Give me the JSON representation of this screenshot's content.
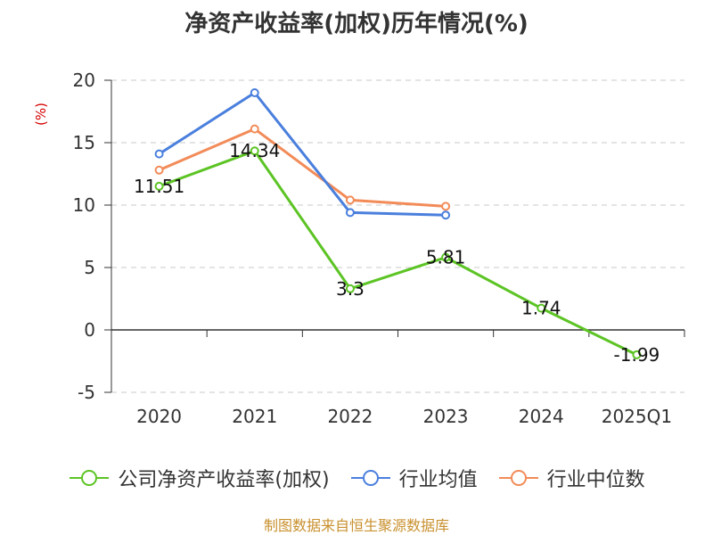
{
  "title": "净资产收益率(加权)历年情况(%)",
  "source": "制图数据来自恒生聚源数据库",
  "chart_data": {
    "type": "line",
    "title": "净资产收益率(加权)历年情况(%)",
    "ylabel": "(%)",
    "xlabel": "",
    "categories": [
      "2020",
      "2021",
      "2022",
      "2023",
      "2024",
      "2025Q1"
    ],
    "ylim": [
      -5,
      20
    ],
    "yticks": [
      20,
      15,
      10,
      5,
      0,
      -5
    ],
    "grid": true,
    "legend_position": "bottom",
    "series": [
      {
        "name": "公司净资产收益率(加权)",
        "color": "#5cc424",
        "values": [
          11.51,
          14.34,
          3.3,
          5.81,
          1.74,
          -1.99
        ],
        "labels": [
          "11.51",
          "14.34",
          "3.3",
          "5.81",
          "1.74",
          "-1.99"
        ]
      },
      {
        "name": "行业均值",
        "color": "#4a7fdd",
        "values": [
          14.1,
          19.0,
          9.4,
          9.2,
          null,
          null
        ]
      },
      {
        "name": "行业中位数",
        "color": "#f28b58",
        "values": [
          12.8,
          16.1,
          10.4,
          9.9,
          null,
          null
        ]
      }
    ]
  }
}
